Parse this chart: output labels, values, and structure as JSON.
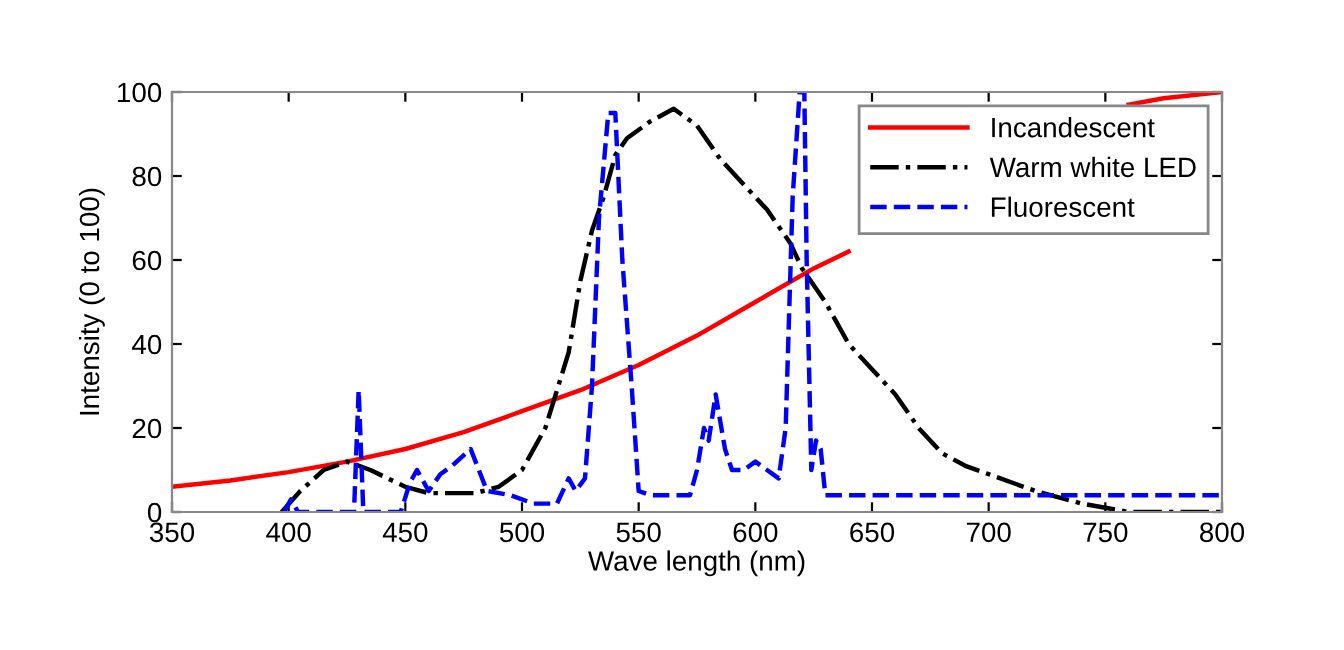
{
  "chart_data": {
    "type": "line",
    "xlabel": "Wave length (nm)",
    "ylabel": "Intensity (0 to 100)",
    "xlim": [
      350,
      800
    ],
    "ylim": [
      0,
      100
    ],
    "xticks": [
      350,
      400,
      450,
      500,
      550,
      600,
      650,
      700,
      750,
      800
    ],
    "yticks": [
      0,
      20,
      40,
      60,
      80,
      100
    ],
    "grid": false,
    "legend": "top right",
    "marker": "none",
    "series": [
      {
        "name": "Incandescent",
        "color": "#ff0000",
        "line_style": "solid",
        "x": [
          350,
          375,
          400,
          425,
          450,
          475,
          500,
          525,
          550,
          575,
          600,
          625,
          640,
          650,
          675,
          700,
          725,
          750,
          760,
          775,
          800
        ],
        "values": [
          6,
          7.5,
          9.5,
          12,
          15,
          19,
          24,
          29,
          35,
          42,
          50,
          58,
          62,
          null,
          null,
          null,
          null,
          null,
          97,
          98.5,
          100
        ]
      },
      {
        "name": "Warm white LED",
        "color": "#000000",
        "line_style": "dashdot",
        "x": [
          397,
          405,
          415,
          425,
          435,
          450,
          460,
          480,
          490,
          500,
          510,
          520,
          525,
          530,
          535,
          540,
          545,
          555,
          565,
          575,
          585,
          595,
          605,
          615,
          620,
          630,
          640,
          650,
          660,
          670,
          680,
          690,
          700,
          720,
          740,
          760,
          800
        ],
        "values": [
          0,
          5,
          10,
          12,
          10,
          6,
          4.5,
          4.5,
          6,
          10,
          20,
          38,
          55,
          67,
          75,
          85,
          89,
          93,
          96,
          92,
          84,
          78,
          72,
          64,
          58,
          50,
          40,
          34,
          28,
          20,
          14,
          11,
          9,
          5,
          2,
          0,
          0
        ]
      },
      {
        "name": "Fluorescent",
        "color": "#0000ff",
        "line_style": "dashed",
        "x": [
          398,
          401,
          404,
          428,
          430,
          432,
          448,
          452,
          455,
          460,
          465,
          470,
          478,
          485,
          495,
          505,
          515,
          520,
          523,
          527,
          530,
          533,
          537,
          540,
          543,
          547,
          550,
          555,
          565,
          572,
          575,
          578,
          580,
          583,
          587,
          590,
          595,
          600,
          605,
          610,
          613,
          616,
          619,
          621,
          622,
          624,
          626,
          628,
          630,
          800
        ],
        "values": [
          0,
          3,
          0,
          0,
          29,
          0,
          0,
          7,
          10,
          5,
          9,
          11,
          15,
          5,
          4,
          2,
          2,
          8,
          5,
          8,
          30,
          70,
          95,
          95,
          60,
          30,
          5,
          4,
          4,
          4,
          10,
          20,
          17,
          28,
          15,
          10,
          10,
          12,
          10,
          8,
          20,
          75,
          100,
          100,
          60,
          10,
          17,
          15,
          4,
          4
        ]
      }
    ]
  }
}
